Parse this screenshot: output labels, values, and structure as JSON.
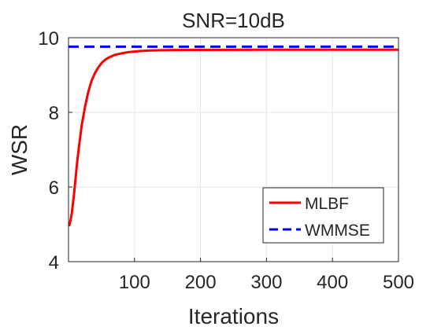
{
  "chart_data": {
    "type": "line",
    "title": "SNR=10dB",
    "xlabel": "Iterations",
    "ylabel": "WSR",
    "xlim": [
      0,
      500
    ],
    "ylim": [
      4,
      10
    ],
    "xticks": [
      100,
      200,
      300,
      400,
      500
    ],
    "yticks": [
      4,
      6,
      8,
      10
    ],
    "grid": true,
    "legend_position": "bottom-right",
    "series": [
      {
        "name": "MLBF",
        "color": "#ff0000",
        "line_style": "solid",
        "x": [
          1,
          3,
          5,
          8,
          10,
          13,
          16,
          20,
          25,
          30,
          35,
          40,
          45,
          50,
          55,
          60,
          65,
          70,
          80,
          90,
          100,
          110,
          120,
          140,
          160,
          200,
          300,
          400,
          500
        ],
        "y": [
          4.95,
          5.1,
          5.3,
          5.75,
          6.1,
          6.65,
          7.1,
          7.65,
          8.15,
          8.55,
          8.85,
          9.05,
          9.2,
          9.32,
          9.4,
          9.46,
          9.5,
          9.54,
          9.58,
          9.61,
          9.63,
          9.645,
          9.655,
          9.665,
          9.67,
          9.675,
          9.68,
          9.68,
          9.68
        ]
      },
      {
        "name": "WMMSE",
        "color": "#0000ff",
        "line_style": "dashed",
        "x": [
          0,
          500
        ],
        "y": [
          9.76,
          9.76
        ]
      }
    ]
  }
}
